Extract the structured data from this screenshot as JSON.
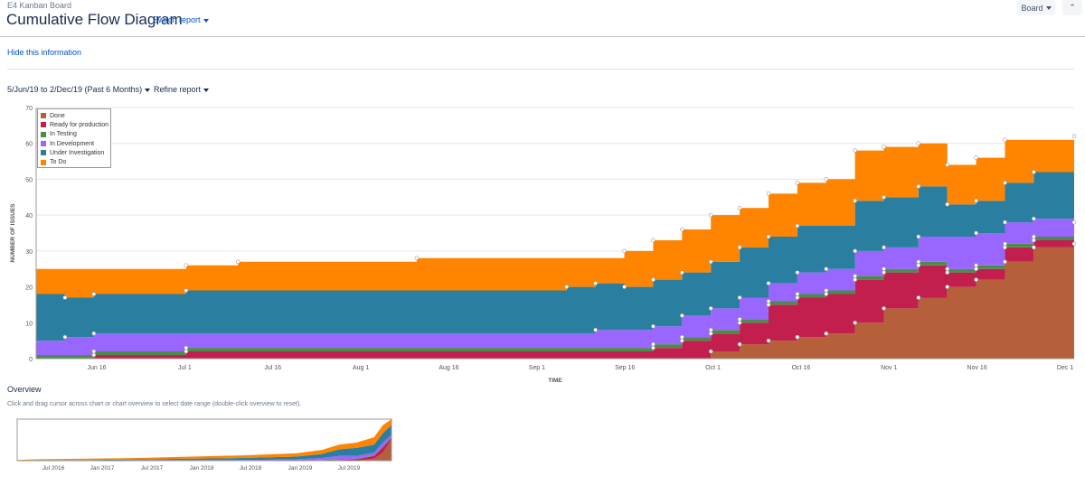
{
  "header": {
    "project_name": "E4 Kanban Board",
    "page_title": "Cumulative Flow Diagram",
    "switch_report_label": "Switch report",
    "board_button_label": "Board",
    "collapse_icon": "double-chevron-up-icon",
    "collapse_glyph": "⌃"
  },
  "info": {
    "hide_label": "Hide this information"
  },
  "filters": {
    "date_range_label": "5/Jun/19 to 2/Dec/19 (Past 6 Months)",
    "refine_label": "Refine report"
  },
  "overview": {
    "title": "Overview",
    "hint": "Click and drag cursor across chart or chart overview to select date range (double-click overview to reset).",
    "x_ticks": [
      "Jul 2016",
      "Jan 2017",
      "Jul 2017",
      "Jan 2018",
      "Jul 2018",
      "Jan 2019",
      "Jul 2019"
    ]
  },
  "chart_data": {
    "type": "area",
    "stacked": true,
    "xlabel": "TIME",
    "ylabel": "NUMBER OF ISSUES",
    "ylim": [
      0,
      70
    ],
    "y_ticks": [
      0,
      10,
      20,
      30,
      40,
      50,
      60,
      70
    ],
    "x_ticks": [
      "Jun 16",
      "Jul 1",
      "Jul 16",
      "Aug 1",
      "Aug 16",
      "Sep 1",
      "Sep 16",
      "Oct 1",
      "Oct 16",
      "Nov 1",
      "Nov 16",
      "Dec 1"
    ],
    "x_start": "2019-06-05",
    "x_end": "2019-12-02",
    "grid": true,
    "legend_position": "top-left",
    "x": [
      "2019-06-05",
      "2019-06-10",
      "2019-06-15",
      "2019-06-20",
      "2019-06-25",
      "2019-07-01",
      "2019-07-10",
      "2019-07-20",
      "2019-08-01",
      "2019-08-10",
      "2019-08-20",
      "2019-08-30",
      "2019-09-05",
      "2019-09-10",
      "2019-09-15",
      "2019-09-20",
      "2019-09-25",
      "2019-09-30",
      "2019-10-05",
      "2019-10-10",
      "2019-10-15",
      "2019-10-20",
      "2019-10-25",
      "2019-10-30",
      "2019-11-05",
      "2019-11-10",
      "2019-11-15",
      "2019-11-20",
      "2019-11-25",
      "2019-12-02"
    ],
    "series": [
      {
        "name": "Done",
        "color": "#b65f3b",
        "values": [
          0,
          0,
          0,
          0,
          0,
          0,
          0,
          0,
          0,
          0,
          0,
          0,
          0,
          0,
          0,
          0,
          0,
          2,
          4,
          5,
          6,
          7,
          10,
          14,
          17,
          20,
          22,
          27,
          31,
          32
        ]
      },
      {
        "name": "Ready for production",
        "color": "#c21f4e",
        "values": [
          0,
          0,
          1,
          1,
          1,
          2,
          2,
          2,
          2,
          2,
          2,
          2,
          2,
          2,
          2,
          3,
          5,
          5,
          6,
          10,
          11,
          11,
          12,
          10,
          9,
          4,
          3,
          4,
          2,
          1
        ]
      },
      {
        "name": "In Testing",
        "color": "#4b8c4b",
        "values": [
          1,
          1,
          1,
          1,
          1,
          1,
          1,
          1,
          1,
          1,
          1,
          1,
          1,
          1,
          1,
          1,
          1,
          1,
          1,
          1,
          1,
          1,
          1,
          1,
          1,
          1,
          1,
          1,
          1,
          1
        ]
      },
      {
        "name": "In Development",
        "color": "#9966ff",
        "values": [
          4,
          5,
          5,
          5,
          5,
          4,
          4,
          4,
          4,
          4,
          4,
          4,
          4,
          5,
          5,
          5,
          6,
          6,
          6,
          5,
          6,
          6,
          7,
          6,
          7,
          9,
          9,
          6,
          5,
          4
        ]
      },
      {
        "name": "Under Investigation",
        "color": "#2a7fa0",
        "values": [
          13,
          11,
          11,
          11,
          11,
          12,
          12,
          12,
          12,
          12,
          12,
          12,
          13,
          13,
          12,
          13,
          12,
          13,
          14,
          13,
          13,
          12,
          14,
          14,
          14,
          9,
          9,
          11,
          13,
          14
        ]
      },
      {
        "name": "To Do",
        "color": "#ff8400",
        "values": [
          7,
          8,
          7,
          7,
          7,
          7,
          8,
          8,
          8,
          9,
          9,
          9,
          8,
          7,
          10,
          11,
          12,
          13,
          11,
          12,
          12,
          13,
          14,
          14,
          12,
          11,
          12,
          12,
          9,
          10
        ]
      }
    ]
  },
  "overview_data": {
    "type": "area",
    "x": [
      "2016-05",
      "2016-07",
      "2017-01",
      "2017-07",
      "2018-01",
      "2018-07",
      "2019-01",
      "2019-04",
      "2019-06",
      "2019-08",
      "2019-10",
      "2019-11",
      "2019-12"
    ],
    "series": [
      {
        "name": "Done",
        "color": "#b65f3b",
        "values": [
          0,
          0,
          0,
          0,
          0,
          0,
          0,
          0,
          0,
          0,
          3,
          12,
          32
        ]
      },
      {
        "name": "Ready for production",
        "color": "#c21f4e",
        "values": [
          0,
          0,
          0,
          0,
          0,
          0,
          0,
          0,
          1,
          2,
          4,
          8,
          2
        ]
      },
      {
        "name": "In Testing",
        "color": "#4b8c4b",
        "values": [
          0,
          0,
          0,
          0,
          0,
          0,
          0,
          1,
          1,
          1,
          1,
          1,
          1
        ]
      },
      {
        "name": "In Development",
        "color": "#9966ff",
        "values": [
          0,
          0,
          0,
          1,
          1,
          1,
          2,
          3,
          5,
          4,
          4,
          6,
          4
        ]
      },
      {
        "name": "Under Investigation",
        "color": "#2a7fa0",
        "values": [
          0,
          1,
          1,
          1,
          2,
          3,
          4,
          6,
          10,
          12,
          12,
          14,
          14
        ]
      },
      {
        "name": "To Do",
        "color": "#ff8400",
        "values": [
          1,
          1,
          2,
          2,
          3,
          4,
          5,
          6,
          7,
          8,
          11,
          12,
          9
        ]
      }
    ]
  }
}
